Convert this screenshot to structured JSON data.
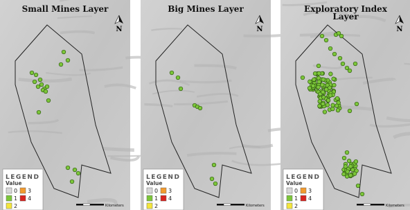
{
  "panels": [
    {
      "title_lines": [
        "Small Mines Layer"
      ],
      "north": "N",
      "legend": {
        "title": "LEGEND",
        "subtitle": "Value",
        "items": [
          {
            "label": "0",
            "color": "#d9d9d9"
          },
          {
            "label": "3",
            "color": "#f29a2e"
          },
          {
            "label": "1",
            "color": "#7cc63a"
          },
          {
            "label": "4",
            "color": "#d8231f"
          },
          {
            "label": "2",
            "color": "#f4e63c"
          }
        ]
      },
      "scale_unit": "Kilometers"
    },
    {
      "title_lines": [
        "Big Mines Layer"
      ],
      "north": "N",
      "legend": {
        "title": "LEGEND",
        "subtitle": "Value",
        "items": [
          {
            "label": "0",
            "color": "#d9d9d9"
          },
          {
            "label": "3",
            "color": "#f29a2e"
          },
          {
            "label": "1",
            "color": "#7cc63a"
          },
          {
            "label": "4",
            "color": "#d8231f"
          },
          {
            "label": "2",
            "color": "#f4e63c"
          }
        ]
      },
      "scale_unit": "Kilometers"
    },
    {
      "title_lines": [
        "Exploratory Index",
        "Layer"
      ],
      "north": "N",
      "legend": {
        "title": "LEGEND",
        "subtitle": "Value",
        "items": [
          {
            "label": "0",
            "color": "#d9d9d9"
          },
          {
            "label": "3",
            "color": "#f29a2e"
          },
          {
            "label": "1",
            "color": "#7cc63a"
          },
          {
            "label": "4",
            "color": "#d8231f"
          },
          {
            "label": "2",
            "color": "#f4e63c"
          }
        ]
      },
      "scale_unit": "Kilometers"
    }
  ]
}
